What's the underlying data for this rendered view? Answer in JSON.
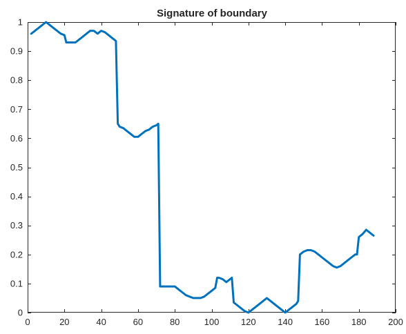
{
  "chart_data": {
    "type": "line",
    "title": "Signature of boundary",
    "xlabel": "",
    "ylabel": "",
    "xlim": [
      0,
      200
    ],
    "ylim": [
      0,
      1
    ],
    "grid": false,
    "x_ticks": [
      "0",
      "20",
      "40",
      "60",
      "80",
      "100",
      "120",
      "140",
      "160",
      "180",
      "200"
    ],
    "y_ticks": [
      "0",
      "0.1",
      "0.2",
      "0.3",
      "0.4",
      "0.5",
      "0.6",
      "0.7",
      "0.8",
      "0.9",
      "1"
    ],
    "series": [
      {
        "color": "#0072bd",
        "x": [
          2,
          4,
          6,
          8,
          10,
          12,
          14,
          16,
          18,
          20,
          21,
          22,
          24,
          26,
          28,
          30,
          32,
          34,
          36,
          38,
          40,
          42,
          44,
          46,
          48,
          49,
          50,
          52,
          54,
          56,
          58,
          60,
          62,
          64,
          66,
          68,
          70,
          71,
          72,
          74,
          76,
          78,
          80,
          82,
          84,
          86,
          88,
          90,
          92,
          94,
          96,
          98,
          100,
          102,
          103,
          104,
          106,
          108,
          110,
          111,
          112,
          114,
          116,
          118,
          120,
          122,
          124,
          126,
          128,
          130,
          132,
          134,
          136,
          138,
          140,
          142,
          144,
          146,
          147,
          148,
          150,
          152,
          154,
          156,
          158,
          160,
          162,
          164,
          166,
          168,
          170,
          172,
          174,
          176,
          178,
          179,
          180,
          182,
          184,
          186,
          188
        ],
        "y": [
          0.96,
          0.97,
          0.98,
          0.99,
          1.0,
          0.99,
          0.98,
          0.97,
          0.96,
          0.955,
          0.93,
          0.93,
          0.93,
          0.93,
          0.94,
          0.95,
          0.96,
          0.97,
          0.97,
          0.96,
          0.97,
          0.965,
          0.955,
          0.945,
          0.935,
          0.65,
          0.64,
          0.635,
          0.625,
          0.615,
          0.605,
          0.605,
          0.615,
          0.625,
          0.63,
          0.64,
          0.645,
          0.65,
          0.09,
          0.09,
          0.09,
          0.09,
          0.09,
          0.08,
          0.07,
          0.06,
          0.055,
          0.05,
          0.05,
          0.05,
          0.055,
          0.065,
          0.075,
          0.085,
          0.12,
          0.12,
          0.115,
          0.105,
          0.115,
          0.12,
          0.035,
          0.025,
          0.015,
          0.005,
          0.0,
          0.01,
          0.02,
          0.03,
          0.04,
          0.05,
          0.04,
          0.03,
          0.02,
          0.01,
          0.0,
          0.01,
          0.02,
          0.03,
          0.04,
          0.2,
          0.21,
          0.215,
          0.215,
          0.21,
          0.2,
          0.19,
          0.18,
          0.17,
          0.16,
          0.155,
          0.16,
          0.17,
          0.18,
          0.19,
          0.2,
          0.2,
          0.26,
          0.27,
          0.285,
          0.275,
          0.265
        ]
      }
    ]
  }
}
